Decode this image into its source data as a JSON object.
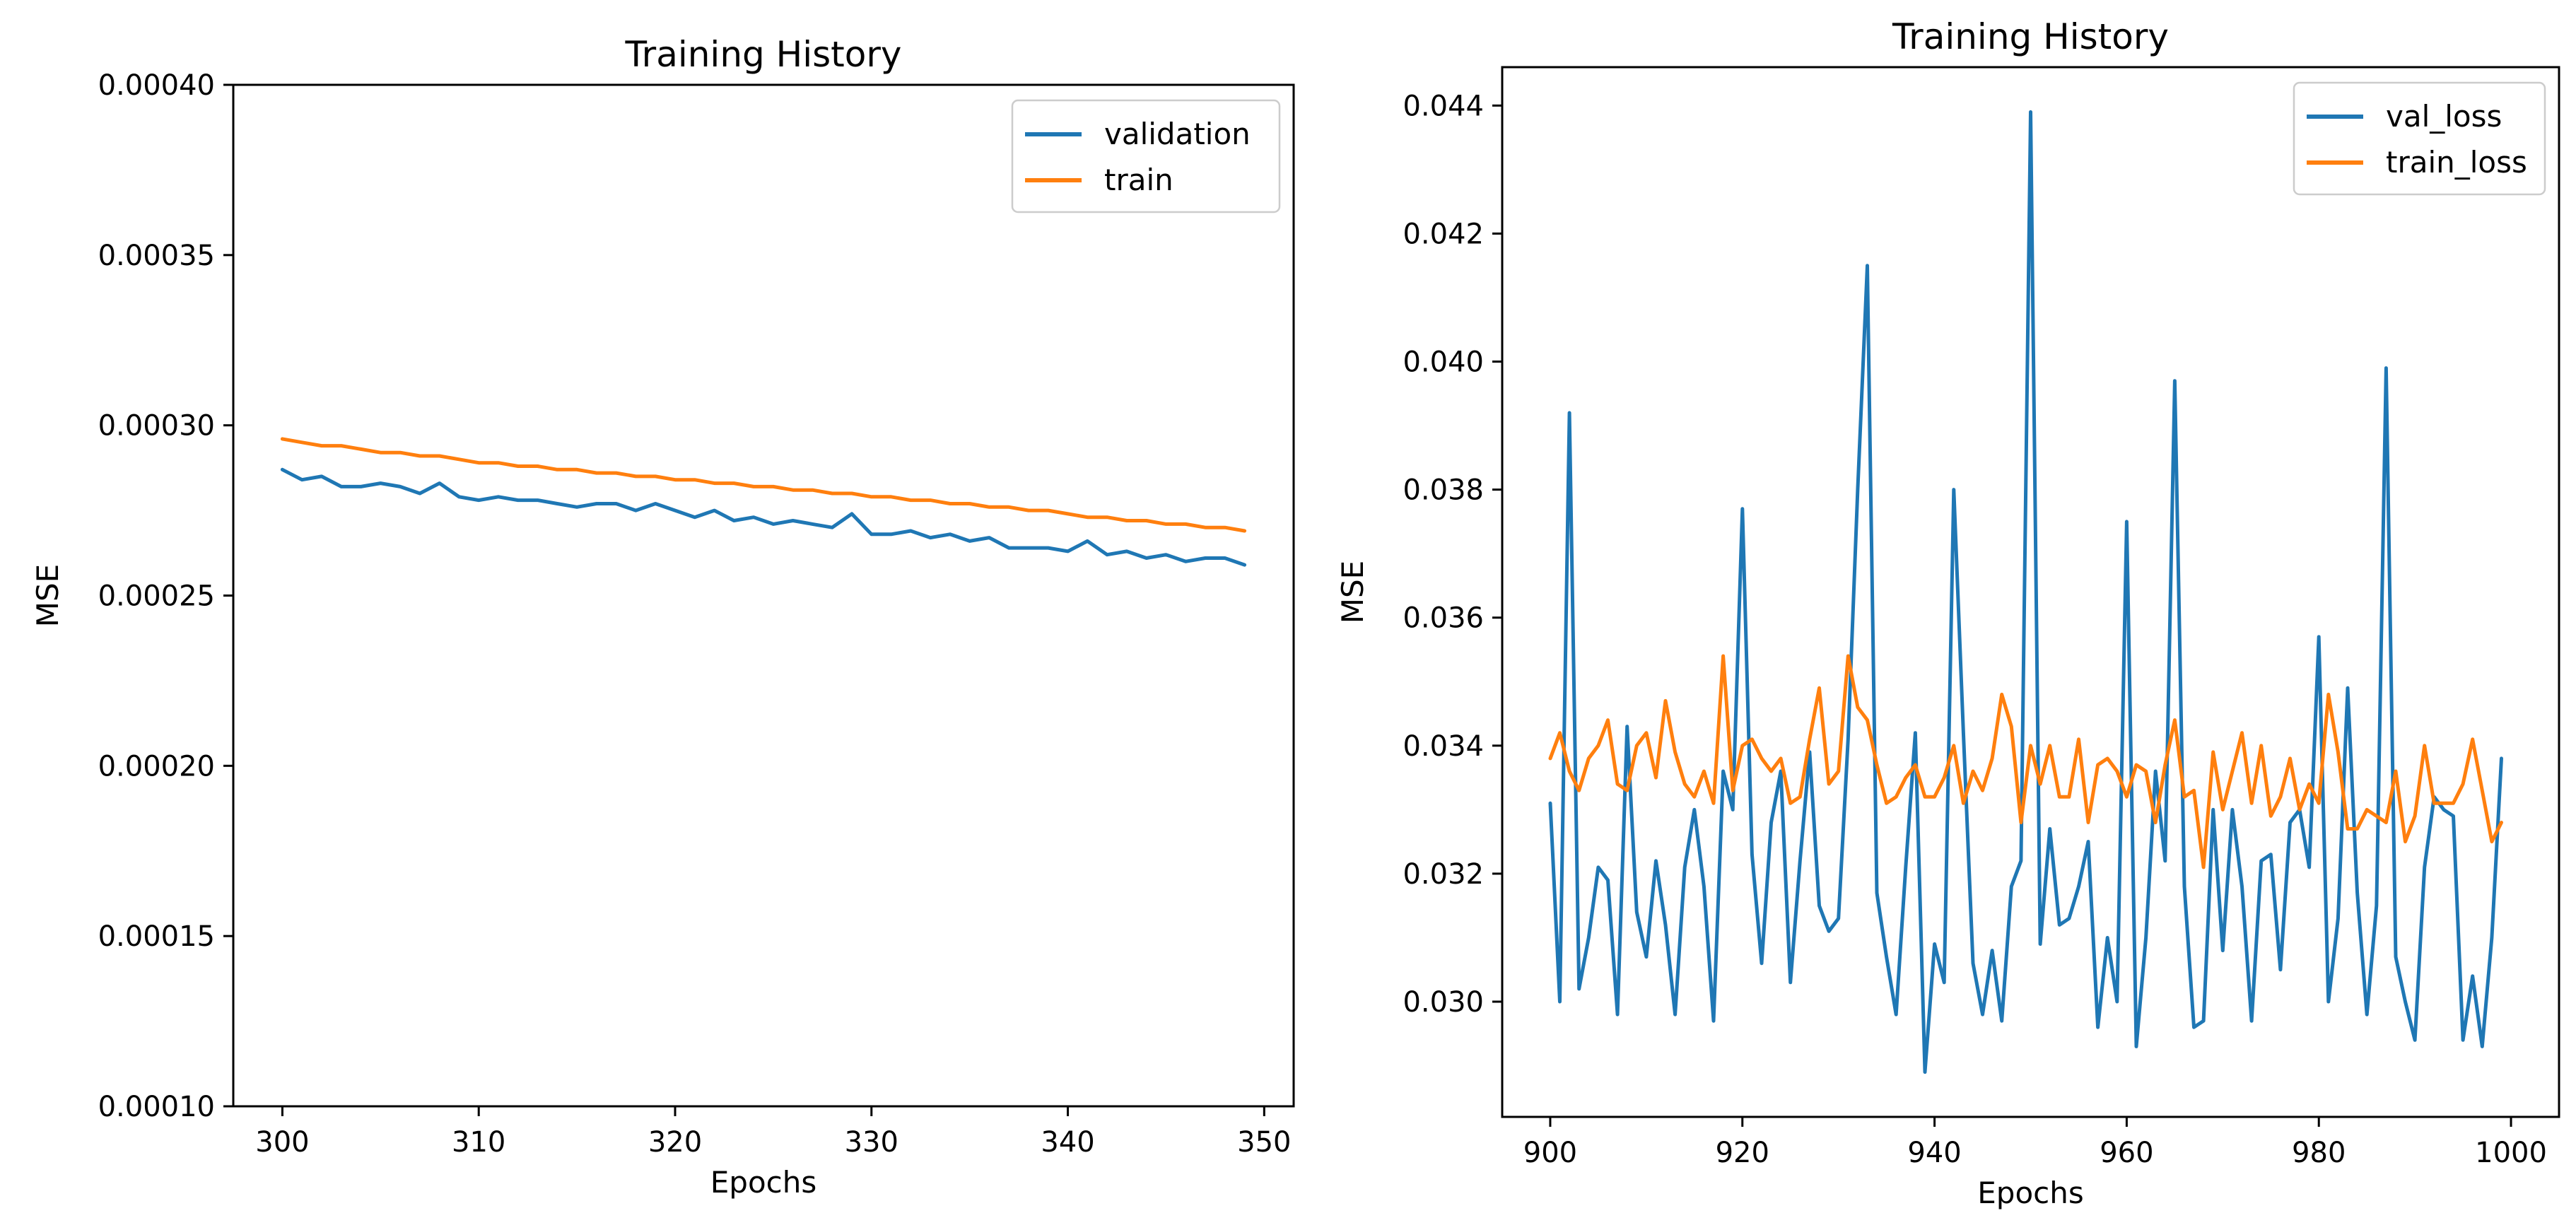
{
  "chart_data": [
    {
      "type": "line",
      "title": "Training History",
      "xlabel": "Epochs",
      "ylabel": "MSE",
      "xlim": [
        297.5,
        351.5
      ],
      "ylim": [
        0.0001,
        0.0004
      ],
      "xticks": [
        300,
        310,
        320,
        330,
        340,
        350
      ],
      "yticks": [
        0.0001,
        0.00015,
        0.0002,
        0.00025,
        0.0003,
        0.00035,
        0.0004
      ],
      "ytick_labels": [
        "0.00010",
        "0.00015",
        "0.00020",
        "0.00025",
        "0.00030",
        "0.00035",
        "0.00040"
      ],
      "legend_position": "top-right",
      "x_start": 300,
      "series": [
        {
          "name": "validation",
          "color": "#1f77b4",
          "values": [
            0.000287,
            0.000284,
            0.000285,
            0.000282,
            0.000282,
            0.000283,
            0.000282,
            0.00028,
            0.000283,
            0.000279,
            0.000278,
            0.000279,
            0.000278,
            0.000278,
            0.000277,
            0.000276,
            0.000277,
            0.000277,
            0.000275,
            0.000277,
            0.000275,
            0.000273,
            0.000275,
            0.000272,
            0.000273,
            0.000271,
            0.000272,
            0.000271,
            0.00027,
            0.000274,
            0.000268,
            0.000268,
            0.000269,
            0.000267,
            0.000268,
            0.000266,
            0.000267,
            0.000264,
            0.000264,
            0.000264,
            0.000263,
            0.000266,
            0.000262,
            0.000263,
            0.000261,
            0.000262,
            0.00026,
            0.000261,
            0.000261,
            0.000259
          ]
        },
        {
          "name": "train",
          "color": "#ff7f0e",
          "values": [
            0.000296,
            0.000295,
            0.000294,
            0.000294,
            0.000293,
            0.000292,
            0.000292,
            0.000291,
            0.000291,
            0.00029,
            0.000289,
            0.000289,
            0.000288,
            0.000288,
            0.000287,
            0.000287,
            0.000286,
            0.000286,
            0.000285,
            0.000285,
            0.000284,
            0.000284,
            0.000283,
            0.000283,
            0.000282,
            0.000282,
            0.000281,
            0.000281,
            0.00028,
            0.00028,
            0.000279,
            0.000279,
            0.000278,
            0.000278,
            0.000277,
            0.000277,
            0.000276,
            0.000276,
            0.000275,
            0.000275,
            0.000274,
            0.000273,
            0.000273,
            0.000272,
            0.000272,
            0.000271,
            0.000271,
            0.00027,
            0.00027,
            0.000269
          ]
        }
      ]
    },
    {
      "type": "line",
      "title": "Training History",
      "xlabel": "Epochs",
      "ylabel": "MSE",
      "xlim": [
        895,
        1005
      ],
      "ylim": [
        0.0282,
        0.0446
      ],
      "xticks": [
        900,
        920,
        940,
        960,
        980,
        1000
      ],
      "yticks": [
        0.03,
        0.032,
        0.034,
        0.036,
        0.038,
        0.04,
        0.042,
        0.044
      ],
      "ytick_labels": [
        "0.030",
        "0.032",
        "0.034",
        "0.036",
        "0.038",
        "0.040",
        "0.042",
        "0.044"
      ],
      "legend_position": "top-right",
      "x_start": 900,
      "series": [
        {
          "name": "val_loss",
          "color": "#1f77b4",
          "values": [
            0.0331,
            0.03,
            0.0392,
            0.0302,
            0.031,
            0.0321,
            0.0319,
            0.0298,
            0.0343,
            0.0314,
            0.0307,
            0.0322,
            0.0312,
            0.0298,
            0.0321,
            0.033,
            0.0318,
            0.0297,
            0.0336,
            0.033,
            0.0377,
            0.0323,
            0.0306,
            0.0328,
            0.0336,
            0.0303,
            0.0322,
            0.0339,
            0.0315,
            0.0311,
            0.0313,
            0.0341,
            0.038,
            0.0415,
            0.0317,
            0.0307,
            0.0298,
            0.0321,
            0.0342,
            0.0289,
            0.0309,
            0.0303,
            0.038,
            0.0342,
            0.0306,
            0.0298,
            0.0308,
            0.0297,
            0.0318,
            0.0322,
            0.0439,
            0.0309,
            0.0327,
            0.0312,
            0.0313,
            0.0318,
            0.0325,
            0.0296,
            0.031,
            0.03,
            0.0375,
            0.0293,
            0.031,
            0.0336,
            0.0322,
            0.0397,
            0.0318,
            0.0296,
            0.0297,
            0.033,
            0.0308,
            0.033,
            0.0318,
            0.0297,
            0.0322,
            0.0323,
            0.0305,
            0.0328,
            0.033,
            0.0321,
            0.0357,
            0.03,
            0.0313,
            0.0349,
            0.0317,
            0.0298,
            0.0315,
            0.0399,
            0.0307,
            0.03,
            0.0294,
            0.0321,
            0.0332,
            0.033,
            0.0329,
            0.0294,
            0.0304,
            0.0293,
            0.031,
            0.0338
          ]
        },
        {
          "name": "train_loss",
          "color": "#ff7f0e",
          "values": [
            0.0338,
            0.0342,
            0.0336,
            0.0333,
            0.0338,
            0.034,
            0.0344,
            0.0334,
            0.0333,
            0.034,
            0.0342,
            0.0335,
            0.0347,
            0.0339,
            0.0334,
            0.0332,
            0.0336,
            0.0331,
            0.0354,
            0.0333,
            0.034,
            0.0341,
            0.0338,
            0.0336,
            0.0338,
            0.0331,
            0.0332,
            0.0341,
            0.0349,
            0.0334,
            0.0336,
            0.0354,
            0.0346,
            0.0344,
            0.0337,
            0.0331,
            0.0332,
            0.0335,
            0.0337,
            0.0332,
            0.0332,
            0.0335,
            0.034,
            0.0331,
            0.0336,
            0.0333,
            0.0338,
            0.0348,
            0.0343,
            0.0328,
            0.034,
            0.0334,
            0.034,
            0.0332,
            0.0332,
            0.0341,
            0.0328,
            0.0337,
            0.0338,
            0.0336,
            0.0332,
            0.0337,
            0.0336,
            0.0328,
            0.0337,
            0.0344,
            0.0332,
            0.0333,
            0.0321,
            0.0339,
            0.033,
            0.0336,
            0.0342,
            0.0331,
            0.034,
            0.0329,
            0.0332,
            0.0338,
            0.033,
            0.0334,
            0.0331,
            0.0348,
            0.0339,
            0.0327,
            0.0327,
            0.033,
            0.0329,
            0.0328,
            0.0336,
            0.0325,
            0.0329,
            0.034,
            0.0331,
            0.0331,
            0.0331,
            0.0334,
            0.0341,
            0.0333,
            0.0325,
            0.0328
          ]
        }
      ]
    }
  ]
}
